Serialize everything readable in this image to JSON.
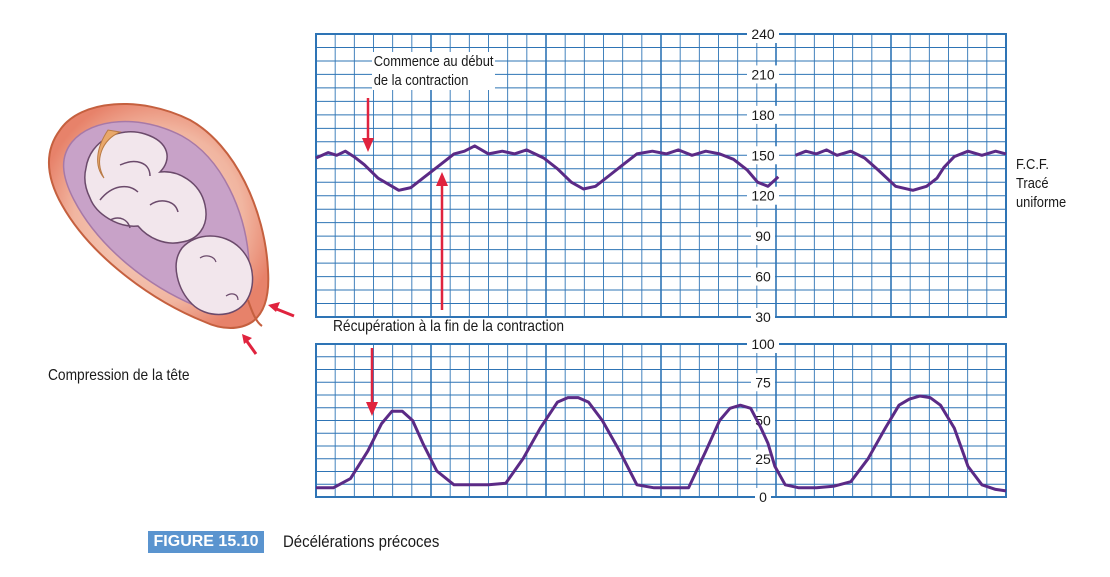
{
  "chart_data": [
    {
      "type": "line",
      "series": [
        {
          "x": [
            0,
            0.07,
            0.12,
            0.17,
            0.22,
            0.28,
            0.36,
            0.48,
            0.55,
            0.62,
            0.69,
            0.75,
            0.8,
            0.86,
            0.92,
            1.0,
            1.08,
            1.15,
            1.22,
            1.32,
            1.4,
            1.48,
            1.55,
            1.62,
            1.7,
            1.78,
            1.86,
            1.95,
            2.03,
            2.1,
            2.18,
            2.26,
            2.34,
            2.42,
            2.5,
            2.56,
            2.62,
            2.68,
            2.72,
            2.78,
            2.84,
            2.9,
            2.96,
            3.02,
            3.1,
            3.18,
            3.26,
            3.36,
            3.46,
            3.54,
            3.6,
            3.64,
            3.7,
            3.78,
            3.86,
            3.94,
            4.0
          ],
          "y": [
            148,
            152,
            150,
            153,
            149,
            143,
            133,
            124,
            126,
            133,
            140,
            146,
            151,
            153,
            157,
            151,
            153,
            151,
            154,
            148,
            140,
            130,
            125,
            127,
            135,
            143,
            151,
            153,
            151,
            154,
            150,
            153,
            151,
            147,
            139,
            130,
            127,
            134,
            null,
            150,
            153,
            151,
            154,
            150,
            153,
            148,
            139,
            127,
            124,
            127,
            133,
            141,
            149,
            153,
            150,
            153,
            151
          ]
        }
      ],
      "ylim": [
        30,
        240
      ],
      "y_ticks": [
        "240",
        "210",
        "180",
        "150",
        "120",
        "90",
        "60",
        "30"
      ]
    },
    {
      "type": "line",
      "series": [
        {
          "x": [
            0,
            0.1,
            0.2,
            0.3,
            0.38,
            0.44,
            0.5,
            0.56,
            0.62,
            0.7,
            0.8,
            0.92,
            1.0,
            1.1,
            1.2,
            1.3,
            1.4,
            1.46,
            1.52,
            1.58,
            1.66,
            1.76,
            1.86,
            1.96,
            2.06,
            2.16,
            2.26,
            2.34,
            2.4,
            2.46,
            2.52,
            2.58,
            2.62,
            2.66,
            2.72,
            2.8,
            2.9,
            3.0,
            3.1,
            3.2,
            3.3,
            3.38,
            3.44,
            3.5,
            3.56,
            3.62,
            3.7,
            3.78,
            3.86,
            3.94,
            4.0
          ],
          "y": [
            6,
            6,
            12,
            30,
            48,
            56,
            56,
            50,
            35,
            17,
            8,
            8,
            8,
            9,
            25,
            45,
            62,
            65,
            65,
            62,
            50,
            30,
            8,
            6,
            6,
            6,
            30,
            50,
            58,
            60,
            58,
            45,
            35,
            20,
            8,
            6,
            6,
            7,
            10,
            25,
            45,
            60,
            64,
            66,
            65,
            60,
            45,
            20,
            8,
            5,
            4
          ]
        }
      ],
      "ylim": [
        0,
        100
      ],
      "y_ticks": [
        "100",
        "75",
        "50",
        "25",
        "0"
      ]
    }
  ],
  "annotations": {
    "start_line1": "Commence au début",
    "start_line2": "de la contraction",
    "recovery": "Récupération à la fin de la contraction",
    "fhr_line1": "F.C.F.",
    "fhr_line2": "Tracé",
    "fhr_line3": "uniforme",
    "illustration_caption": "Compression de la tête"
  },
  "figure": {
    "number": "FIGURE 15.10",
    "title": "Décélérations précoces"
  },
  "colors": {
    "grid": "#2e74b5",
    "trace": "#5b2a86",
    "arrow": "#e0233e",
    "badge": "#5a94cf"
  }
}
